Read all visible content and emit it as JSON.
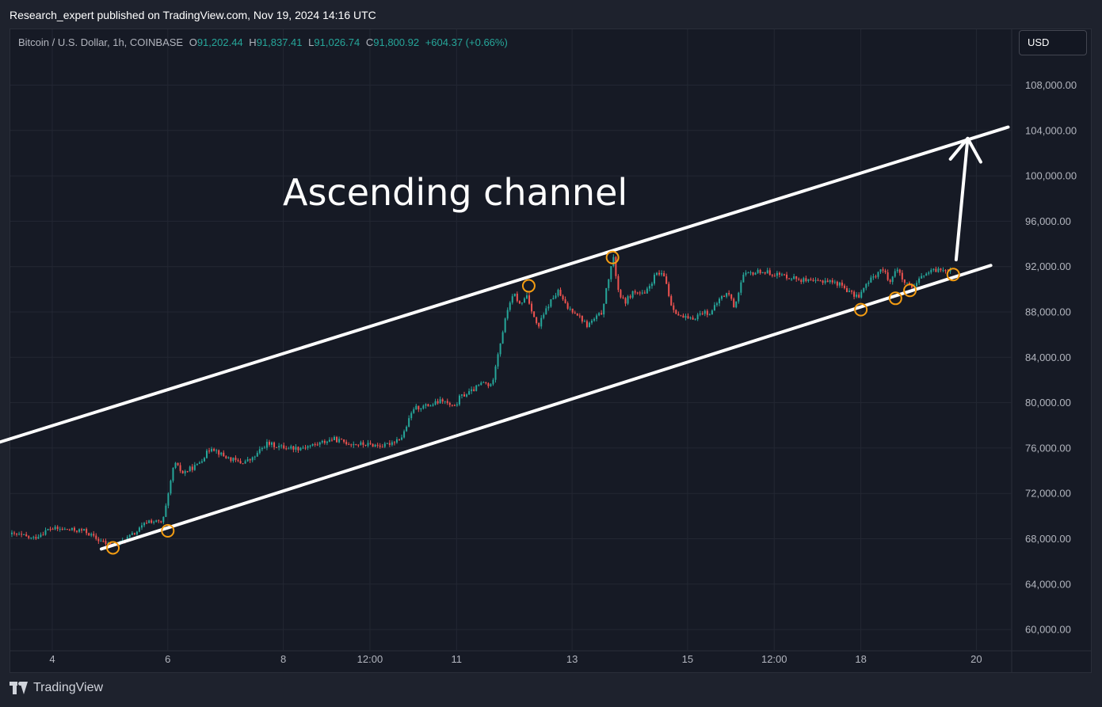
{
  "header": {
    "publisher_line": "Research_expert published on TradingView.com, Nov 19, 2024 14:16 UTC"
  },
  "symbol": {
    "name": "Bitcoin / U.S. Dollar, 1h, COINBASE",
    "open_key": "O",
    "open": "91,202.44",
    "high_key": "H",
    "high": "91,837.41",
    "low_key": "L",
    "low": "91,026.74",
    "close_key": "C",
    "close": "91,800.92",
    "change": "+604.37 (+0.66%)"
  },
  "currency_button": {
    "label": "USD"
  },
  "footer": {
    "brand": "TradingView"
  },
  "colors": {
    "up": "#26a69a",
    "down": "#ef5350",
    "annotation": "#ffffff",
    "touch_marker": "#f39c12",
    "grid": "#232733"
  },
  "chart_data": {
    "type": "line",
    "y_axis": {
      "position": "right",
      "ticks": [
        {
          "value": 60000,
          "label": "60,000.00"
        },
        {
          "value": 64000,
          "label": "64,000.00"
        },
        {
          "value": 68000,
          "label": "68,000.00"
        },
        {
          "value": 72000,
          "label": "72,000.00"
        },
        {
          "value": 76000,
          "label": "76,000.00"
        },
        {
          "value": 80000,
          "label": "80,000.00"
        },
        {
          "value": 84000,
          "label": "84,000.00"
        },
        {
          "value": 88000,
          "label": "88,000.00"
        },
        {
          "value": 92000,
          "label": "92,000.00"
        },
        {
          "value": 96000,
          "label": "96,000.00"
        },
        {
          "value": 100000,
          "label": "100,000.00"
        },
        {
          "value": 104000,
          "label": "104,000.00"
        },
        {
          "value": 108000,
          "label": "108,000.00"
        }
      ]
    },
    "x_axis": {
      "ticks": [
        {
          "t": 3.0,
          "label": "4"
        },
        {
          "t": 5.0,
          "label": "6"
        },
        {
          "t": 7.0,
          "label": "8"
        },
        {
          "t": 8.5,
          "label": "12:00"
        },
        {
          "t": 10.0,
          "label": "11"
        },
        {
          "t": 12.0,
          "label": "13"
        },
        {
          "t": 14.0,
          "label": "15"
        },
        {
          "t": 15.5,
          "label": "12:00"
        },
        {
          "t": 17.0,
          "label": "18"
        },
        {
          "t": 19.0,
          "label": "20"
        }
      ]
    },
    "price_path": [
      [
        2.3,
        68400
      ],
      [
        2.5,
        68300
      ],
      [
        2.7,
        68000
      ],
      [
        3.0,
        68900
      ],
      [
        3.3,
        68800
      ],
      [
        3.6,
        68700
      ],
      [
        3.8,
        68000
      ],
      [
        4.0,
        67500
      ],
      [
        4.2,
        67600
      ],
      [
        4.5,
        68600
      ],
      [
        4.7,
        69600
      ],
      [
        4.95,
        69400
      ],
      [
        5.05,
        71800
      ],
      [
        5.15,
        74700
      ],
      [
        5.3,
        73800
      ],
      [
        5.55,
        74500
      ],
      [
        5.8,
        76100
      ],
      [
        6.0,
        75300
      ],
      [
        6.3,
        74700
      ],
      [
        6.5,
        75000
      ],
      [
        6.75,
        76400
      ],
      [
        7.0,
        76100
      ],
      [
        7.3,
        76000
      ],
      [
        7.6,
        76300
      ],
      [
        7.9,
        76800
      ],
      [
        8.2,
        76400
      ],
      [
        8.5,
        76300
      ],
      [
        8.8,
        76200
      ],
      [
        9.1,
        77000
      ],
      [
        9.3,
        79500
      ],
      [
        9.6,
        79800
      ],
      [
        9.8,
        80200
      ],
      [
        10.0,
        79500
      ],
      [
        10.1,
        80500
      ],
      [
        10.3,
        81000
      ],
      [
        10.5,
        81800
      ],
      [
        10.65,
        81400
      ],
      [
        10.7,
        83000
      ],
      [
        10.85,
        86500
      ],
      [
        10.95,
        88800
      ],
      [
        11.05,
        89500
      ],
      [
        11.15,
        88500
      ],
      [
        11.25,
        89600
      ],
      [
        11.35,
        88100
      ],
      [
        11.45,
        86500
      ],
      [
        11.5,
        87200
      ],
      [
        11.65,
        88800
      ],
      [
        11.8,
        89800
      ],
      [
        11.95,
        88400
      ],
      [
        12.1,
        88000
      ],
      [
        12.3,
        86800
      ],
      [
        12.55,
        87900
      ],
      [
        12.65,
        90300
      ],
      [
        12.75,
        92900
      ],
      [
        12.85,
        89700
      ],
      [
        12.95,
        88800
      ],
      [
        13.1,
        89800
      ],
      [
        13.3,
        89500
      ],
      [
        13.5,
        91400
      ],
      [
        13.65,
        91100
      ],
      [
        13.75,
        88700
      ],
      [
        13.9,
        87600
      ],
      [
        14.1,
        87300
      ],
      [
        14.3,
        88000
      ],
      [
        14.45,
        87900
      ],
      [
        14.6,
        89200
      ],
      [
        14.75,
        89700
      ],
      [
        14.85,
        88400
      ],
      [
        15.0,
        91200
      ],
      [
        15.3,
        91600
      ],
      [
        15.6,
        91300
      ],
      [
        15.9,
        91000
      ],
      [
        16.2,
        90600
      ],
      [
        16.45,
        90800
      ],
      [
        16.7,
        90400
      ],
      [
        16.9,
        89500
      ],
      [
        17.0,
        89400
      ],
      [
        17.2,
        90800
      ],
      [
        17.4,
        91800
      ],
      [
        17.55,
        90700
      ],
      [
        17.65,
        91900
      ],
      [
        17.8,
        90500
      ],
      [
        17.95,
        90000
      ],
      [
        18.1,
        91200
      ],
      [
        18.35,
        91700
      ],
      [
        18.55,
        91800
      ]
    ],
    "annotations": {
      "label": "Ascending channel",
      "upper_line": {
        "from": {
          "t": 1.7,
          "y": 75900
        },
        "to": {
          "t": 19.55,
          "y": 104300
        }
      },
      "lower_line": {
        "from": {
          "t": 3.85,
          "y": 67100
        },
        "to": {
          "t": 19.25,
          "y": 92100
        }
      },
      "arrow": {
        "from": {
          "t": 18.65,
          "y": 92600
        },
        "to": {
          "t": 18.85,
          "y": 103300
        }
      },
      "touches": [
        {
          "t": 4.05,
          "y": 67200
        },
        {
          "t": 5.0,
          "y": 68700
        },
        {
          "t": 11.25,
          "y": 90300
        },
        {
          "t": 12.7,
          "y": 92800
        },
        {
          "t": 17.0,
          "y": 88200
        },
        {
          "t": 17.6,
          "y": 89200
        },
        {
          "t": 17.85,
          "y": 89900
        },
        {
          "t": 18.6,
          "y": 91300
        }
      ]
    }
  }
}
